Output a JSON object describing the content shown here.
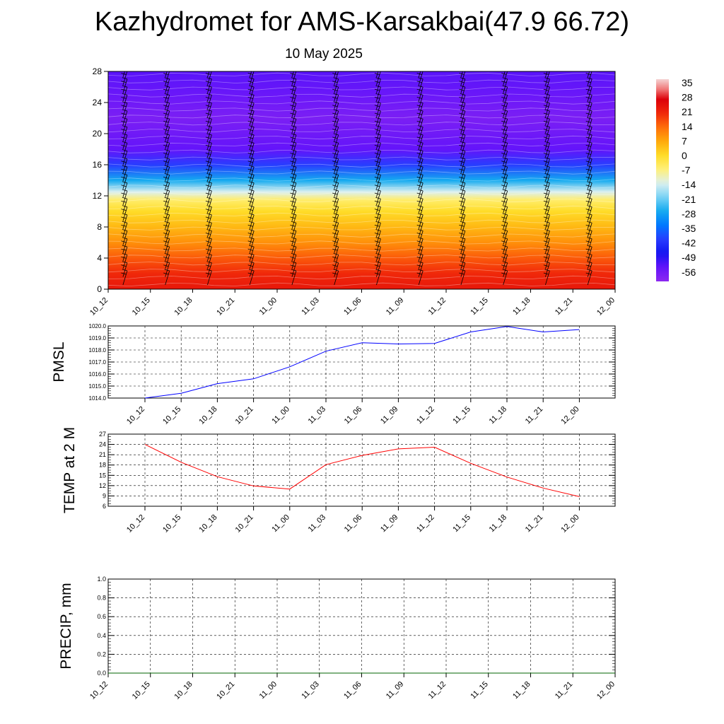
{
  "title": "Kazhydromet for AMS-Karsakbai(47.9 66.72)",
  "subtitle": "10 May 2025",
  "chart_data": [
    {
      "type": "heatmap",
      "name": "upper-air cross-section",
      "x_ticks": [
        "10_12",
        "10_15",
        "10_18",
        "10_21",
        "11_00",
        "11_03",
        "11_06",
        "11_09",
        "11_12",
        "11_15",
        "11_18",
        "11_21",
        "12_00"
      ],
      "y_ticks": [
        "0",
        "4",
        "8",
        "12",
        "16",
        "20",
        "24",
        "28"
      ],
      "ylim": [
        0,
        28
      ],
      "colorbar": {
        "labels": [
          "35",
          "28",
          "21",
          "14",
          "7",
          "0",
          "-7",
          "-14",
          "-21",
          "-28",
          "-35",
          "-42",
          "-49",
          "-56"
        ],
        "range": [
          -63,
          38
        ]
      },
      "temperature_profile": [
        {
          "level": 0,
          "value": 24
        },
        {
          "level": 2,
          "value": 21
        },
        {
          "level": 4,
          "value": 16
        },
        {
          "level": 6,
          "value": 10
        },
        {
          "level": 8,
          "value": 5
        },
        {
          "level": 10,
          "value": 0
        },
        {
          "level": 11.5,
          "value": -6
        },
        {
          "level": 12.5,
          "value": -14
        },
        {
          "level": 14,
          "value": -28
        },
        {
          "level": 16,
          "value": -42
        },
        {
          "level": 18,
          "value": -56
        },
        {
          "level": 22,
          "value": -60
        },
        {
          "level": 25,
          "value": -57
        },
        {
          "level": 28,
          "value": -55
        }
      ],
      "wind_barbs": "shown",
      "grid": false
    },
    {
      "type": "line",
      "ylabel": "PMSL",
      "x": [
        "10_12",
        "10_15",
        "10_18",
        "10_21",
        "11_00",
        "11_03",
        "11_06",
        "11_09",
        "11_12",
        "11_15",
        "11_18",
        "11_21",
        "12_00"
      ],
      "series": [
        {
          "values": [
            1014.0,
            1014.4,
            1015.2,
            1015.6,
            1016.6,
            1017.9,
            1018.6,
            1018.5,
            1018.55,
            1019.5,
            1019.95,
            1019.5,
            1019.7
          ],
          "color": "#0000ff"
        }
      ],
      "ylim": [
        1014.0,
        1020.0
      ],
      "y_ticks": [
        "1014.0",
        "1015.0",
        "1016.0",
        "1017.0",
        "1018.0",
        "1019.0",
        "1020.0"
      ],
      "grid": true
    },
    {
      "type": "line",
      "ylabel": "TEMP at 2 M",
      "x": [
        "10_12",
        "10_15",
        "10_18",
        "10_21",
        "11_00",
        "11_03",
        "11_06",
        "11_09",
        "11_12",
        "11_15",
        "11_18",
        "11_21",
        "12_00"
      ],
      "series": [
        {
          "values": [
            24.0,
            18.8,
            14.6,
            11.9,
            11.0,
            18.1,
            20.8,
            22.7,
            23.2,
            18.5,
            14.5,
            11.3,
            8.8
          ],
          "color": "#ff0000"
        }
      ],
      "ylim": [
        6,
        27
      ],
      "y_ticks": [
        "6",
        "9",
        "12",
        "15",
        "18",
        "21",
        "24",
        "27"
      ],
      "grid": true
    },
    {
      "type": "line",
      "ylabel": "PRECIP, mm",
      "x": [
        "10_12",
        "10_15",
        "10_18",
        "10_21",
        "11_00",
        "11_03",
        "11_06",
        "11_09",
        "11_12",
        "11_15",
        "11_18",
        "11_21",
        "12_00"
      ],
      "series": [
        {
          "values": [
            0,
            0,
            0,
            0,
            0,
            0,
            0,
            0,
            0,
            0,
            0,
            0,
            0
          ],
          "color": "#006400"
        }
      ],
      "ylim": [
        0,
        1.0
      ],
      "y_ticks": [
        "0.0",
        "0.2",
        "0.4",
        "0.6",
        "0.8",
        "1.0"
      ],
      "grid": true
    }
  ]
}
